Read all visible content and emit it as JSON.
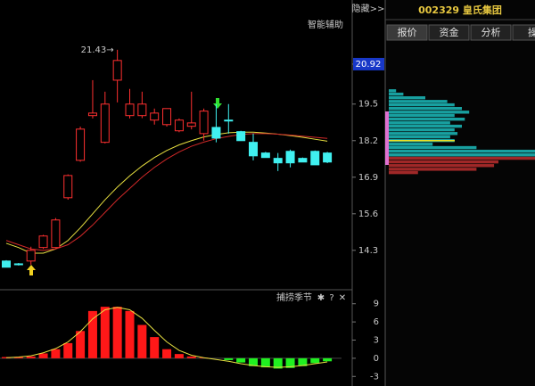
{
  "header": {
    "hide": "隐藏>>",
    "stock": "002329 皇氏集团",
    "tabs": [
      "报价",
      "资金",
      "分析",
      "操"
    ]
  },
  "chart_data": [
    {
      "type": "candlestick",
      "title": "智能辅助",
      "open": [
        13.92,
        13.82,
        13.92,
        14.4,
        14.4,
        16.17,
        17.5,
        19.09,
        18.14,
        20.35,
        19.09,
        19.09,
        18.93,
        18.77,
        18.55,
        18.71,
        18.45,
        18.67,
        18.93,
        18.52,
        18.14,
        17.76,
        17.57,
        17.82,
        17.57,
        17.82,
        17.76
      ],
      "high": [
        13.95,
        13.85,
        14.43,
        14.85,
        15.45,
        17.0,
        18.7,
        20.35,
        19.94,
        21.43,
        20.04,
        19.94,
        19.34,
        19.34,
        18.99,
        19.94,
        19.34,
        19.5,
        19.5,
        18.55,
        18.45,
        17.8,
        17.76,
        17.88,
        17.6,
        17.85,
        17.8
      ],
      "low": [
        13.7,
        13.76,
        13.79,
        14.35,
        14.38,
        16.1,
        17.45,
        18.99,
        18.1,
        19.56,
        18.99,
        19.0,
        18.77,
        18.7,
        18.5,
        18.6,
        18.2,
        18.14,
        18.45,
        18.2,
        17.5,
        17.6,
        17.12,
        17.25,
        17.44,
        17.34,
        17.4
      ],
      "close": [
        13.7,
        13.79,
        14.3,
        14.81,
        15.38,
        16.96,
        18.61,
        19.18,
        19.5,
        21.05,
        19.5,
        19.5,
        19.18,
        19.34,
        18.93,
        18.83,
        19.25,
        18.29,
        18.9,
        18.2,
        17.66,
        17.6,
        17.41,
        17.41,
        17.44,
        17.34,
        17.44
      ],
      "high_label": "21.43→",
      "up_color": "#ff3030",
      "down_color": "#40f0f0",
      "lines": [
        {
          "color": "#e8e040",
          "values": [
            14.55,
            14.4,
            14.2,
            14.2,
            14.35,
            14.65,
            15.1,
            15.6,
            16.1,
            16.55,
            16.95,
            17.3,
            17.6,
            17.85,
            18.05,
            18.2,
            18.33,
            18.42,
            18.48,
            18.5,
            18.5,
            18.47,
            18.43,
            18.38,
            18.32,
            18.25,
            18.18
          ]
        },
        {
          "color": "#d02828",
          "values": [
            14.65,
            14.5,
            14.35,
            14.3,
            14.35,
            14.5,
            14.8,
            15.2,
            15.65,
            16.1,
            16.5,
            16.9,
            17.25,
            17.55,
            17.8,
            18.0,
            18.15,
            18.27,
            18.35,
            18.42,
            18.45,
            18.45,
            18.43,
            18.4,
            18.36,
            18.32,
            18.28
          ]
        }
      ],
      "ylim": [
        12.9,
        23.2
      ],
      "yticks": [
        14.3,
        15.6,
        16.9,
        18.2,
        19.5,
        20.92
      ],
      "highlight_tick_index": 5
    },
    {
      "type": "hbar",
      "y": [
        19.97,
        19.85,
        19.72,
        19.59,
        19.47,
        19.34,
        19.21,
        19.09,
        18.96,
        18.83,
        18.71,
        18.58,
        18.45,
        18.33,
        18.2,
        18.07,
        17.95,
        17.82,
        17.69,
        17.57,
        17.44,
        17.31,
        17.18,
        17.06
      ],
      "values": [
        5,
        10,
        25,
        40,
        45,
        50,
        55,
        45,
        52,
        42,
        50,
        45,
        47,
        42,
        45,
        30,
        60,
        100,
        100,
        100,
        75,
        72,
        60,
        20
      ],
      "colors": [
        "#18a0a0",
        "#18a0a0",
        "#18a0a0",
        "#18a0a0",
        "#18a0a0",
        "#18a0a0",
        "#18a0a0",
        "#18a0a0",
        "#18a0a0",
        "#18a0a0",
        "#18a0a0",
        "#18a0a0",
        "#18a0a0",
        "#18a0a0",
        "#18a0a0",
        "#18a0a0",
        "#18a0a0",
        "#18a0a0",
        "#18a0a0",
        "#a02828",
        "#a02828",
        "#a02828",
        "#a02828",
        "#a02828"
      ],
      "highlight": 18.2,
      "highlight_color": "#f0e020",
      "xlim": [
        0,
        100
      ],
      "ylim": [
        12.9,
        23.2
      ]
    },
    {
      "type": "bar",
      "title": "捕捞季节",
      "buttons": [
        "✱",
        "?",
        "✕"
      ],
      "values": [
        0.2,
        0.2,
        0.3,
        0.8,
        1.5,
        2.5,
        4.5,
        7.8,
        8.5,
        8.5,
        7.8,
        5.5,
        3.5,
        1.5,
        0.7,
        0.3,
        0.1,
        0,
        -0.3,
        -0.7,
        -1.3,
        -1.5,
        -1.7,
        -1.6,
        -1.3,
        -0.8,
        -0.5
      ],
      "pos_color": "#ff1818",
      "neg_color": "#20f020",
      "line": {
        "color": "#e8e040",
        "values": [
          0.1,
          0.2,
          0.4,
          0.9,
          1.6,
          2.7,
          4.4,
          6.5,
          8.0,
          8.4,
          8.0,
          6.6,
          4.6,
          2.7,
          1.3,
          0.5,
          0.1,
          -0.2,
          -0.5,
          -0.9,
          -1.2,
          -1.4,
          -1.5,
          -1.4,
          -1.2,
          -0.9,
          -0.6
        ]
      },
      "ylim": [
        -3.4,
        9.4
      ],
      "yticks": [
        9,
        6,
        3,
        0,
        -3
      ]
    }
  ]
}
